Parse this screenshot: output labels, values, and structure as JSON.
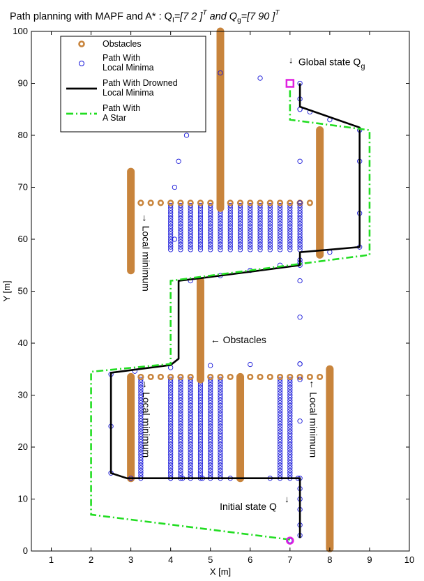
{
  "chart_data": {
    "type": "line",
    "title": {
      "prefix": "Path planning with MAPF and A* : Q",
      "q1_sub": "I",
      "q1_vec": "=[7  2 ]",
      "q1_sup": "T",
      "and_text": "and",
      "qg": "Q",
      "qg_sub": "g",
      "qg_vec": "=[7  90 ]",
      "qg_sup": "T"
    },
    "xlabel": "X [m]",
    "ylabel": "Y [m]",
    "xlim": [
      0.5,
      10
    ],
    "ylim": [
      0,
      100
    ],
    "xticks": [
      1,
      2,
      3,
      4,
      5,
      6,
      7,
      8,
      9,
      10
    ],
    "yticks": [
      0,
      10,
      20,
      30,
      40,
      50,
      60,
      70,
      80,
      90,
      100
    ],
    "grid": false,
    "legend_position": "top-left",
    "colors": {
      "obstacle": "#c8843c",
      "local_minima": "#1515d8",
      "drowned": "#000000",
      "astar": "#22dd22",
      "goal_marker": "#e020e0"
    },
    "obstacles": {
      "vertical_bars": [
        {
          "x": 5.25,
          "y": [
            66,
            100
          ]
        },
        {
          "x": 4.75,
          "y": [
            33,
            52
          ]
        },
        {
          "x": 3.0,
          "y": [
            54,
            73
          ]
        },
        {
          "x": 7.75,
          "y": [
            57,
            81
          ]
        },
        {
          "x": 3.0,
          "y": [
            14,
            33.5
          ]
        },
        {
          "x": 5.75,
          "y": [
            14,
            33.5
          ]
        },
        {
          "x": 8.0,
          "y": [
            0.5,
            35
          ]
        }
      ],
      "circle_rows": [
        {
          "y": 67,
          "x_from": 3.25,
          "x_to": 7.75,
          "step": 0.25
        },
        {
          "y": 33.5,
          "x_from": 3.0,
          "x_to": 7.75,
          "step": 0.25
        }
      ]
    },
    "local_minima_columns": [
      {
        "y_top": 67,
        "y_bottom": 58,
        "xs": [
          4.0,
          4.25,
          4.5,
          4.75,
          5.0,
          5.25,
          5.5,
          5.75,
          6.0,
          6.25,
          6.5,
          6.75,
          7.0,
          7.25
        ]
      },
      {
        "y_top": 33.5,
        "y_bottom": 14,
        "xs": [
          3.25,
          4.0,
          4.25,
          4.5,
          4.75,
          5.0,
          5.25,
          6.75,
          7.0
        ]
      }
    ],
    "series": [
      {
        "name": "Path With Local Minima",
        "style": "markers",
        "x": [
          7.0,
          7.25,
          7.25,
          7.25,
          7.25,
          7.25,
          7.2,
          6.5,
          5.5,
          4.8,
          4.3,
          4.0,
          3.0,
          2.5,
          2.5,
          2.5,
          3.1,
          4.0,
          5.0,
          6.0,
          7.25,
          7.25,
          7.25,
          7.25,
          7.25,
          7.25,
          7.25,
          7.25,
          7.25,
          7.25,
          7.25,
          7.25,
          6.25,
          5.25,
          4.5,
          4.5,
          4.5,
          4.4,
          4.2,
          4.1,
          4.1,
          4.5,
          5.25,
          6.0,
          6.75,
          7.25,
          7.25,
          8.0,
          8.75,
          8.75,
          8.75,
          8.75,
          8.0,
          7.5,
          7.25,
          7.25,
          7.25
        ],
        "y": [
          2,
          3,
          5,
          8,
          10,
          12,
          14,
          14,
          14,
          14,
          14,
          14,
          14,
          15,
          24,
          34,
          34.6,
          35.3,
          35.7,
          35.9,
          36,
          36,
          14,
          25,
          33,
          45,
          52,
          55,
          60,
          67,
          75,
          85,
          91,
          92,
          91,
          88,
          84,
          80,
          75,
          70,
          60,
          52,
          53,
          54,
          55,
          55.5,
          56,
          57.5,
          58.5,
          65,
          75,
          81,
          83,
          84.5,
          85,
          87,
          90
        ]
      },
      {
        "name": "Path With Drowned Local Minima",
        "style": "line",
        "x": [
          7.25,
          7.25,
          2.9,
          2.5,
          2.5,
          4.0,
          4.2,
          4.2,
          4.75,
          7.25,
          7.25,
          8.0,
          8.75,
          8.75,
          7.25,
          7.25
        ],
        "y": [
          2.5,
          14,
          14,
          15,
          34.3,
          35.8,
          37,
          52,
          52.5,
          55,
          57.5,
          58,
          58.5,
          81.5,
          85.5,
          90
        ]
      },
      {
        "name": "Path With A Star",
        "style": "dashdot",
        "x": [
          7.0,
          2.0,
          2.0,
          4.0,
          4.0,
          9.0,
          9.0,
          7.0,
          7.0
        ],
        "y": [
          2.2,
          7,
          34.5,
          36,
          52,
          57,
          81,
          83,
          90
        ]
      }
    ],
    "legend_entries": [
      {
        "label": "Obstacles",
        "marker": "obstacle"
      },
      {
        "label": "Path With\nLocal Minima",
        "marker": "circle"
      },
      {
        "label": "Path With Drowned\nLocal Minima",
        "marker": "line"
      },
      {
        "label": "Path With\nA Star",
        "marker": "dashdot"
      }
    ],
    "annotations": [
      {
        "id": "global-state",
        "text": "Global state Q",
        "sub": "g",
        "arrow": "↓",
        "x": 7.0,
        "y": 92
      },
      {
        "id": "local-min-top",
        "text": "→ Local minimum",
        "x": 3.3,
        "y": 65,
        "rotate": 90
      },
      {
        "id": "obstacles-label",
        "text": "← Obstacles",
        "x": 5.0,
        "y": 40
      },
      {
        "id": "local-min-left",
        "text": "→ Local minimum",
        "x": 3.3,
        "y": 33,
        "rotate": 90
      },
      {
        "id": "local-min-right",
        "text": "← Local minimum",
        "x": 7.5,
        "y": 33,
        "rotate": 90
      },
      {
        "id": "initial-state",
        "text": "Initial state Q",
        "sub": "",
        "arrow": "↓",
        "x": 6.9,
        "y": 7.5
      }
    ],
    "goal_point": {
      "x": 7,
      "y": 90
    },
    "start_point": {
      "x": 7,
      "y": 2
    }
  }
}
